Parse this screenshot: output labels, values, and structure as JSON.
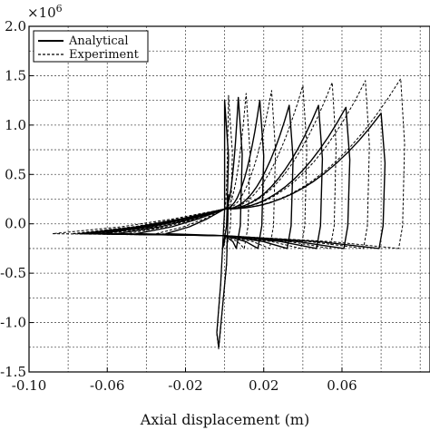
{
  "chart_data": {
    "type": "line",
    "title": "",
    "xlabel": "Axial displacement (m)",
    "ylabel": "",
    "y_multiplier_label": "×10",
    "y_multiplier_exponent": "6",
    "xlim": [
      -0.1,
      0.105
    ],
    "ylim": [
      -1.5,
      2.0
    ],
    "x_ticks": [
      -0.1,
      -0.06,
      -0.02,
      0.02,
      0.06
    ],
    "x_tick_labels": [
      "-0.10",
      "-0.06",
      "-0.02",
      "0.02",
      "0.06"
    ],
    "y_ticks": [
      -1.5,
      -1.0,
      -0.5,
      0.0,
      0.5,
      1.0,
      1.5,
      2.0
    ],
    "y_tick_labels": [
      "-1.5",
      "-1.0",
      "-0.5",
      "0.0",
      "0.5",
      "1.0",
      "1.5",
      "2.0"
    ],
    "grid": true,
    "legend_position": "top-left",
    "series": [
      {
        "name": "Analytical",
        "style": "solid",
        "color": "#000000",
        "loops": [
          {
            "peak": 0.0,
            "top": 1.25,
            "neg": -0.03
          },
          {
            "peak": 0.007,
            "top": 1.28,
            "neg": -0.045
          },
          {
            "peak": 0.018,
            "top": 1.25,
            "neg": -0.055
          },
          {
            "peak": 0.033,
            "top": 1.2,
            "neg": -0.063
          },
          {
            "peak": 0.048,
            "top": 1.2,
            "neg": -0.068
          },
          {
            "peak": 0.062,
            "top": 1.18,
            "neg": -0.072
          },
          {
            "peak": 0.08,
            "top": 1.12,
            "neg": -0.074
          }
        ]
      },
      {
        "name": "Experiment",
        "style": "dashed",
        "color": "#000000",
        "loops": [
          {
            "peak": 0.002,
            "top": 1.3,
            "neg": -0.035
          },
          {
            "peak": 0.011,
            "top": 1.32,
            "neg": -0.05
          },
          {
            "peak": 0.024,
            "top": 1.35,
            "neg": -0.06
          },
          {
            "peak": 0.04,
            "top": 1.4,
            "neg": -0.066
          },
          {
            "peak": 0.055,
            "top": 1.43,
            "neg": -0.072
          },
          {
            "peak": 0.072,
            "top": 1.45,
            "neg": -0.078
          },
          {
            "peak": 0.09,
            "top": 1.47,
            "neg": -0.088
          }
        ]
      }
    ]
  }
}
